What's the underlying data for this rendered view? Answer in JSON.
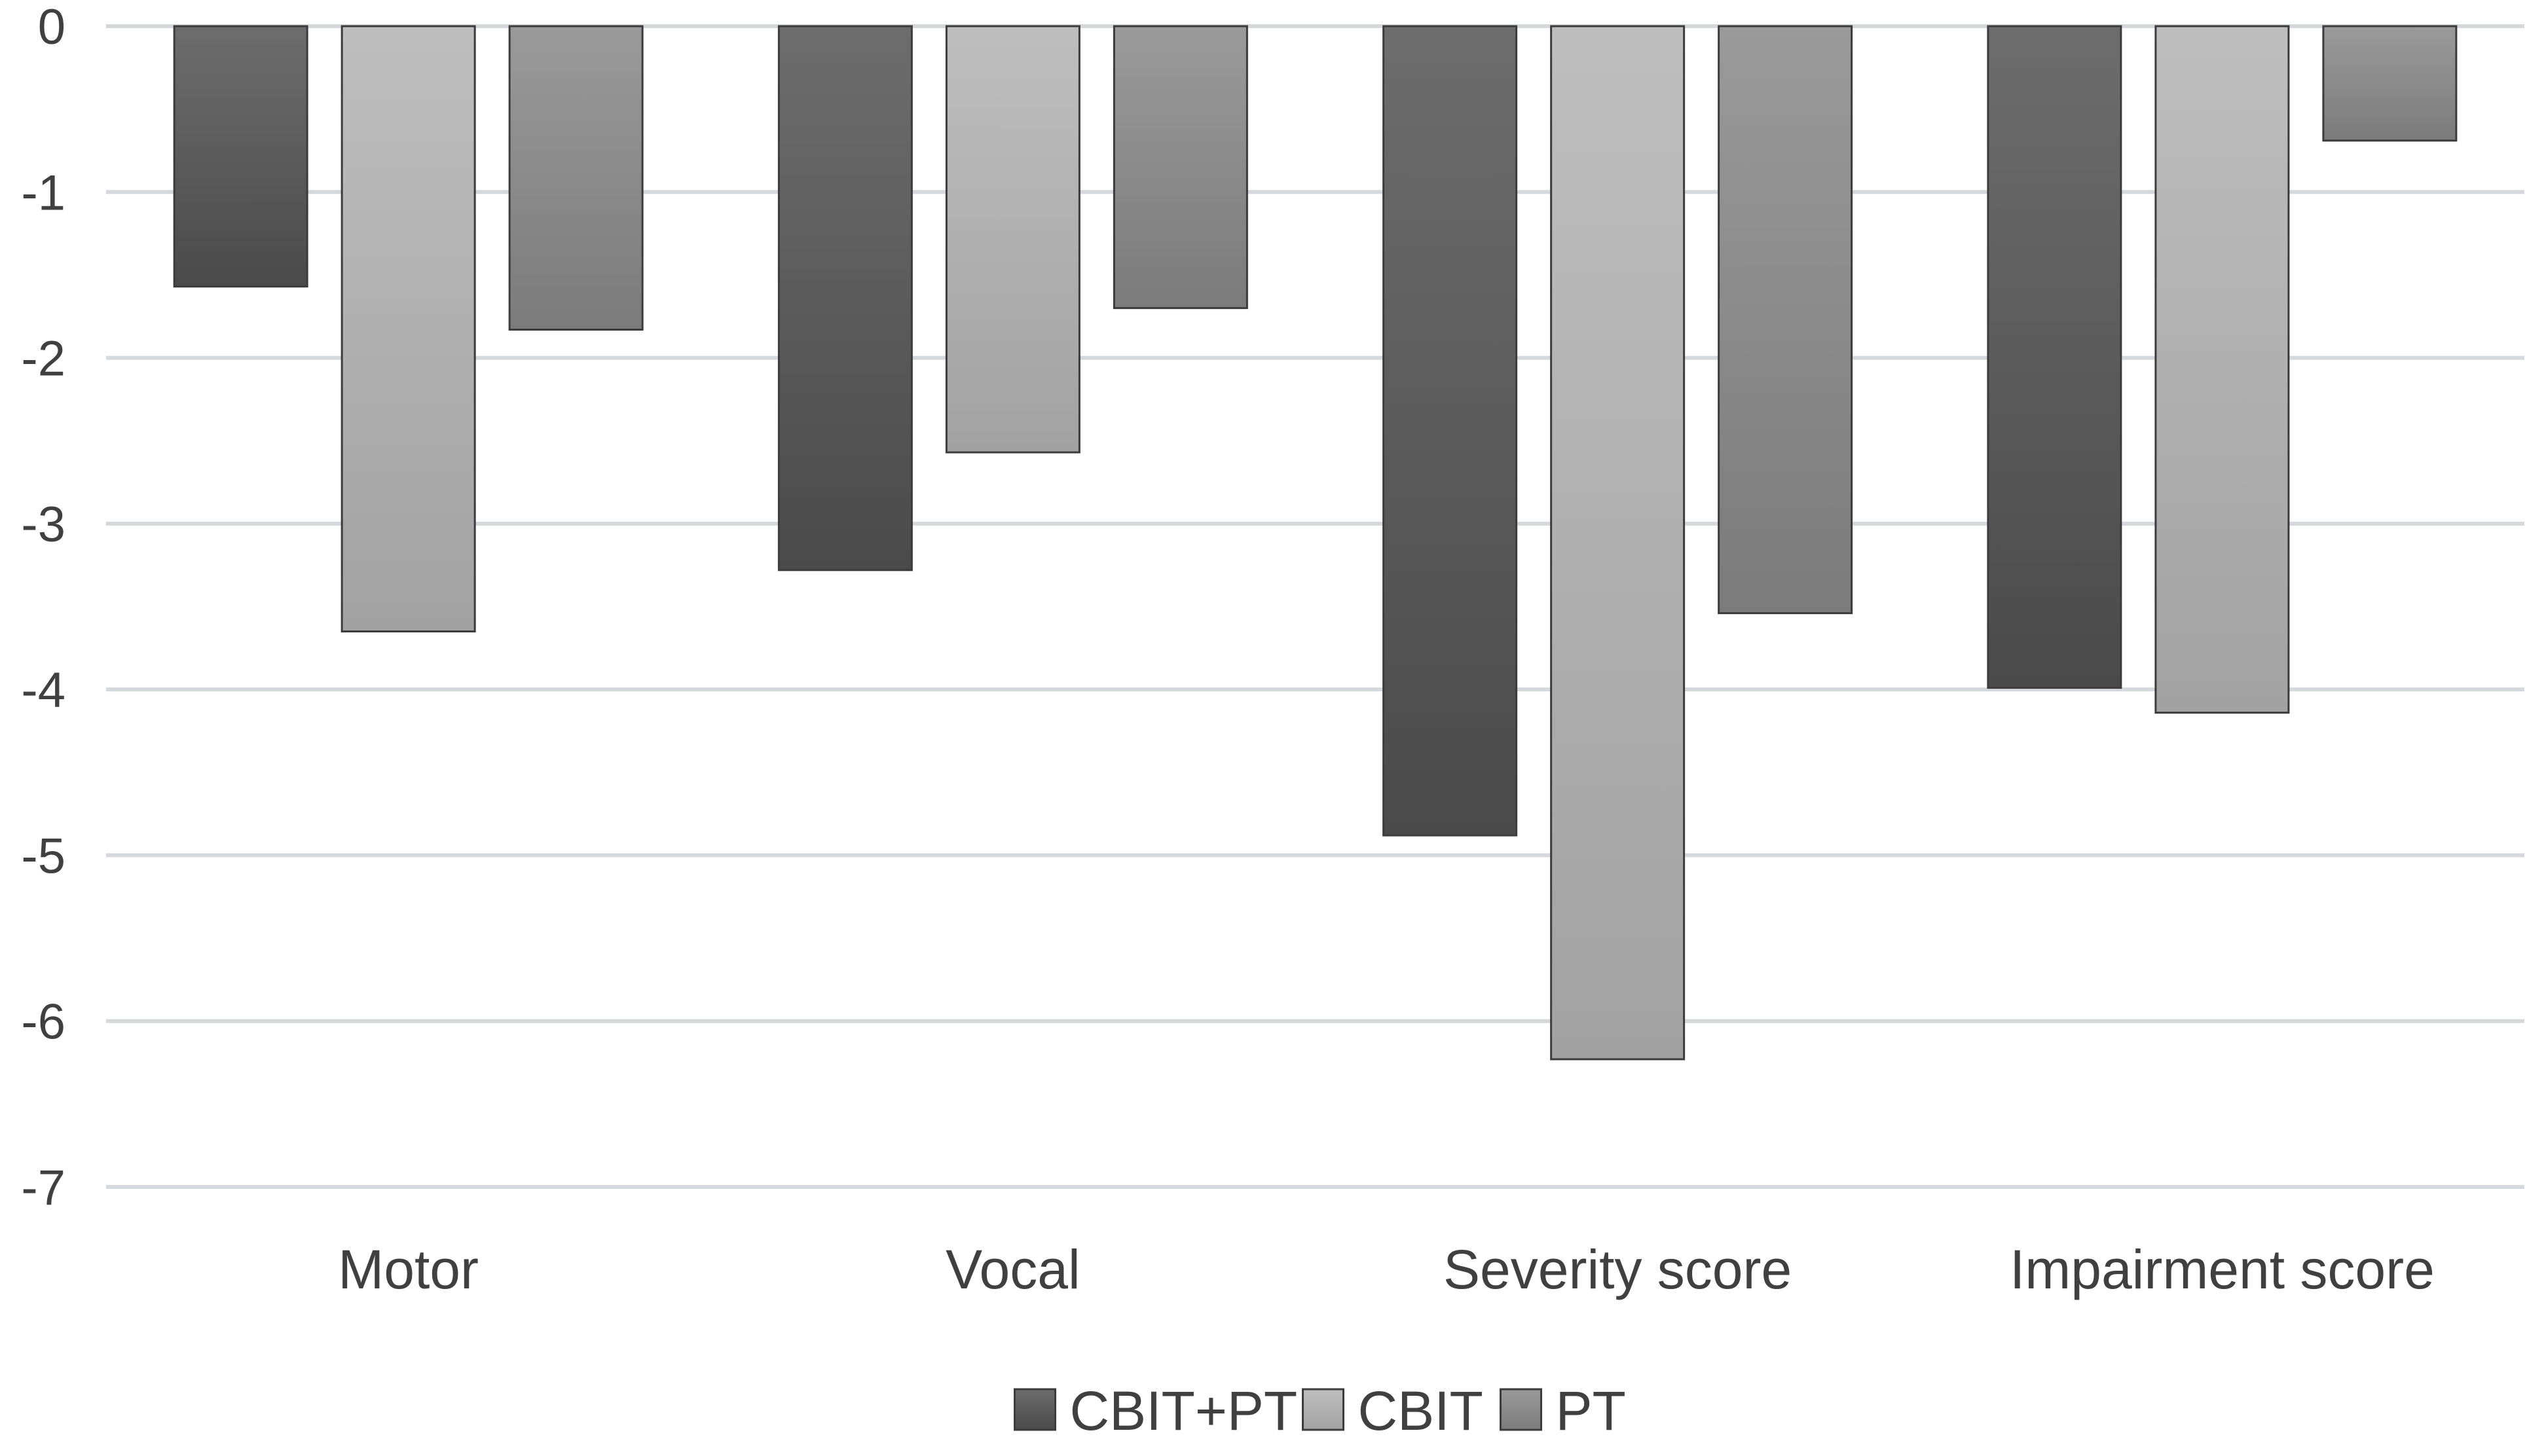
{
  "chart_data": {
    "type": "bar",
    "categories": [
      "Motor",
      "Vocal",
      "Severity score",
      "Impairment score"
    ],
    "series": [
      {
        "name": "CBIT+PT",
        "values": [
          -1.57,
          -3.28,
          -4.88,
          -3.99
        ],
        "color_top": "#6d6d6d",
        "color_bottom": "#4a4a4a"
      },
      {
        "name": "CBIT",
        "values": [
          -3.65,
          -2.57,
          -6.23,
          -4.14
        ],
        "color_top": "#bebebe",
        "color_bottom": "#a2a2a2"
      },
      {
        "name": "PT",
        "values": [
          -1.83,
          -1.7,
          -3.54,
          -0.69
        ],
        "color_top": "#9a9a9a",
        "color_bottom": "#7b7b7b"
      }
    ],
    "ylim": [
      -7,
      0
    ],
    "yticks": [
      0,
      -1,
      -2,
      -3,
      -4,
      -5,
      -6,
      -7
    ],
    "ytick_labels": [
      "0",
      "-1",
      "-2",
      "-3",
      "-4",
      "-5",
      "-6",
      "-7"
    ],
    "grid": true,
    "legend_position": "bottom-center",
    "title": "",
    "xlabel": "",
    "ylabel": ""
  }
}
